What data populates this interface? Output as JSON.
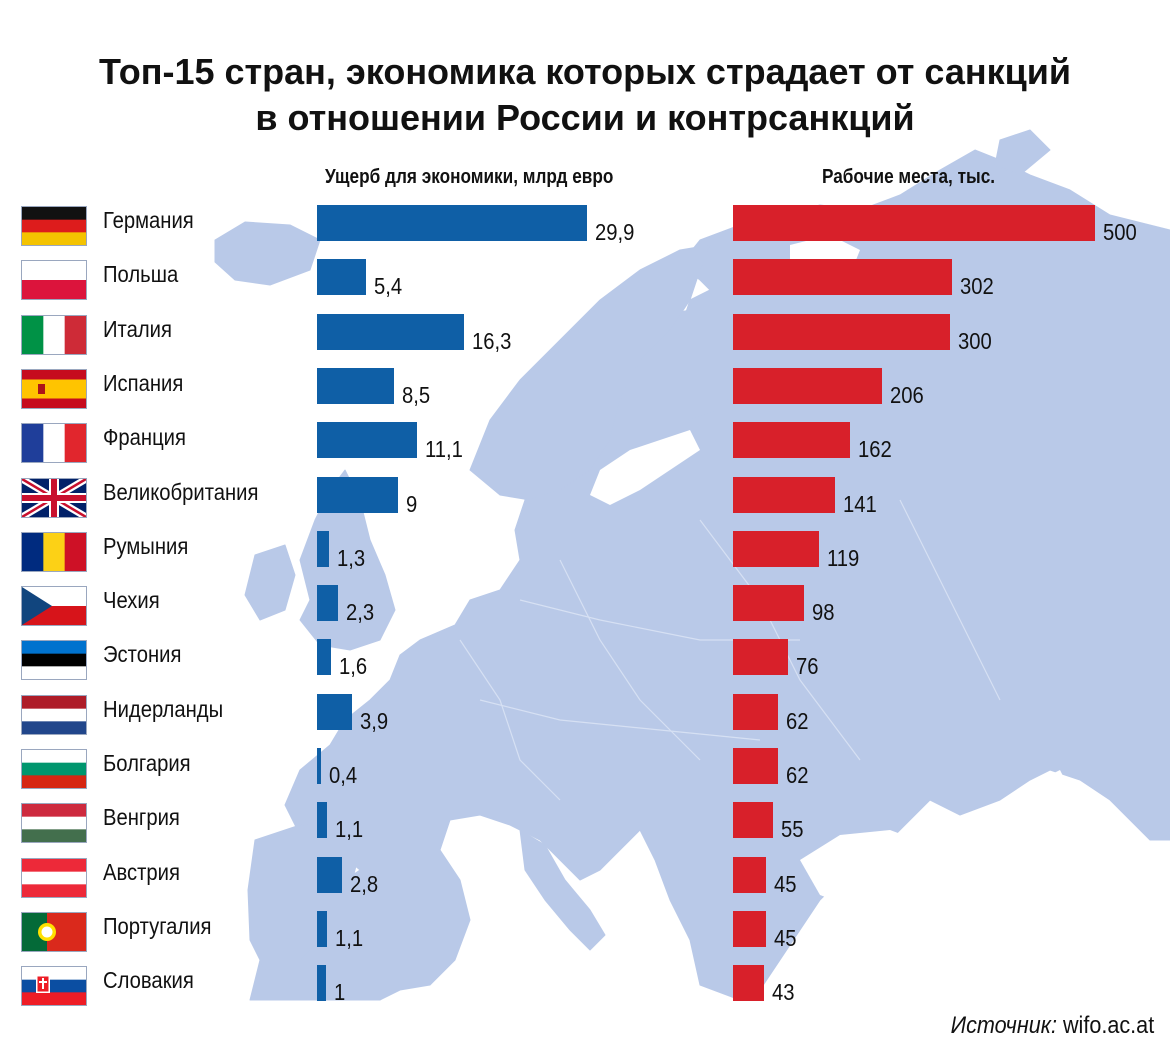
{
  "title_line1": "Топ-15 стран, экономика которых страдает от санкций",
  "title_line2": "в отношении России и контрсанкций",
  "source_label": "Источник:",
  "source_value": "wifo.ac.at",
  "colors": {
    "blue": "#0f5fa6",
    "red": "#d8202a",
    "map": "#b9c9e8"
  },
  "chart_data": [
    {
      "type": "bar",
      "orientation": "horizontal",
      "title": "Ущерб для экономики, млрд евро",
      "categories": [
        "Германия",
        "Польша",
        "Италия",
        "Испания",
        "Франция",
        "Великобритания",
        "Румыния",
        "Чехия",
        "Эстония",
        "Нидерланды",
        "Болгария",
        "Венгрия",
        "Австрия",
        "Португалия",
        "Словакия"
      ],
      "values": [
        29.9,
        5.4,
        16.3,
        8.5,
        11.1,
        9,
        1.3,
        2.3,
        1.6,
        3.9,
        0.4,
        1.1,
        2.8,
        1.1,
        1
      ],
      "labels": [
        "29,9",
        "5,4",
        "16,3",
        "8,5",
        "11,1",
        "9",
        "1,3",
        "2,3",
        "1,6",
        "3,9",
        "0,4",
        "1,1",
        "2,8",
        "1,1",
        "1"
      ],
      "color": "#0f5fa6"
    },
    {
      "type": "bar",
      "orientation": "horizontal",
      "title": "Рабочие места, тыс.",
      "categories": [
        "Германия",
        "Польша",
        "Италия",
        "Испания",
        "Франция",
        "Великобритания",
        "Румыния",
        "Чехия",
        "Эстония",
        "Нидерланды",
        "Болгария",
        "Венгрия",
        "Австрия",
        "Португалия",
        "Словакия"
      ],
      "values": [
        500,
        302,
        300,
        206,
        162,
        141,
        119,
        98,
        76,
        62,
        62,
        55,
        45,
        45,
        43
      ],
      "labels": [
        "500",
        "302",
        "300",
        "206",
        "162",
        "141",
        "119",
        "98",
        "76",
        "62",
        "62",
        "55",
        "45",
        "45",
        "43"
      ],
      "color": "#d8202a"
    }
  ],
  "flags": [
    "germany-flag-icon",
    "poland-flag-icon",
    "italy-flag-icon",
    "spain-flag-icon",
    "france-flag-icon",
    "uk-flag-icon",
    "romania-flag-icon",
    "czechia-flag-icon",
    "estonia-flag-icon",
    "netherlands-flag-icon",
    "bulgaria-flag-icon",
    "hungary-flag-icon",
    "austria-flag-icon",
    "portugal-flag-icon",
    "slovakia-flag-icon"
  ]
}
